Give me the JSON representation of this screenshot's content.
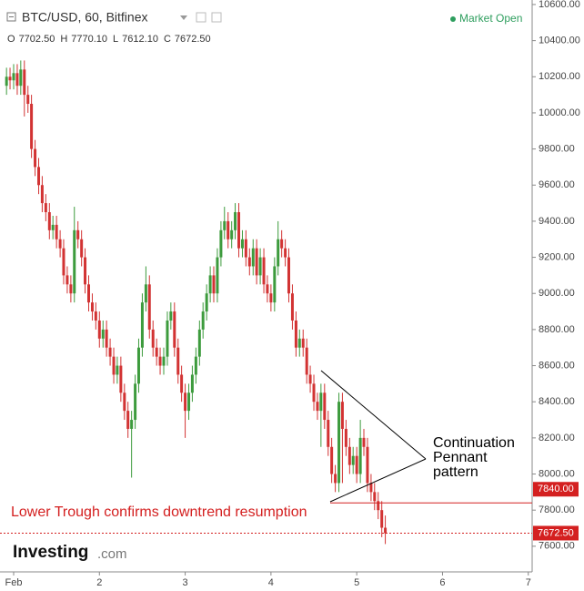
{
  "chart_data": {
    "type": "candlestick",
    "title": "BTC/USD, 60, Bitfinex",
    "status": "Market Open",
    "ohlc_legend": [
      {
        "label": "O",
        "text": "7702.50"
      },
      {
        "label": "H",
        "text": "7770.10"
      },
      {
        "label": "L",
        "text": "7612.10"
      },
      {
        "label": "C",
        "text": "7672.50"
      }
    ],
    "up_color": "#3d9b3d",
    "down_color": "#d23333",
    "x": [
      0.917,
      0.958,
      1.0,
      1.042,
      1.083,
      1.125,
      1.167,
      1.208,
      1.25,
      1.292,
      1.333,
      1.375,
      1.417,
      1.458,
      1.5,
      1.542,
      1.583,
      1.625,
      1.667,
      1.708,
      1.75,
      1.792,
      1.833,
      1.875,
      1.917,
      1.958,
      2.0,
      2.042,
      2.083,
      2.125,
      2.167,
      2.208,
      2.25,
      2.292,
      2.333,
      2.375,
      2.417,
      2.458,
      2.5,
      2.542,
      2.583,
      2.625,
      2.667,
      2.708,
      2.75,
      2.792,
      2.833,
      2.875,
      2.917,
      2.958,
      3.0,
      3.042,
      3.083,
      3.125,
      3.167,
      3.208,
      3.25,
      3.292,
      3.333,
      3.375,
      3.417,
      3.458,
      3.5,
      3.542,
      3.583,
      3.625,
      3.667,
      3.708,
      3.75,
      3.792,
      3.833,
      3.875,
      3.917,
      3.958,
      4.0,
      4.042,
      4.083,
      4.125,
      4.167,
      4.208,
      4.25,
      4.292,
      4.333,
      4.375,
      4.417,
      4.458,
      4.5,
      4.542,
      4.583,
      4.625,
      4.667,
      4.708,
      4.75,
      4.792,
      4.833,
      4.875,
      4.917,
      4.958,
      5.0,
      5.042,
      5.083,
      5.125,
      5.167,
      5.208,
      5.25,
      5.292,
      5.333
    ],
    "open": [
      10150,
      10200,
      10180,
      10220,
      10150,
      10240,
      10100,
      10050,
      9800,
      9700,
      9600,
      9500,
      9450,
      9350,
      9380,
      9300,
      9250,
      9100,
      9050,
      9000,
      9350,
      9300,
      9200,
      9050,
      8950,
      8900,
      8850,
      8750,
      8800,
      8700,
      8650,
      8550,
      8600,
      8450,
      8350,
      8250,
      8300,
      8500,
      8700,
      8950,
      9050,
      8800,
      8700,
      8650,
      8600,
      8650,
      8850,
      8900,
      8700,
      8550,
      8450,
      8350,
      8450,
      8550,
      8650,
      8800,
      8900,
      9000,
      9100,
      9000,
      9200,
      9350,
      9400,
      9300,
      9350,
      9450,
      9250,
      9300,
      9200,
      9150,
      9250,
      9100,
      9200,
      9050,
      9000,
      8950,
      9150,
      9300,
      9250,
      9200,
      9000,
      8850,
      8700,
      8750,
      8700,
      8550,
      8500,
      8400,
      8350,
      8450,
      8300,
      8150,
      8000,
      7950,
      8400,
      8250,
      8150,
      8050,
      8100,
      8000,
      8200,
      8150,
      7950,
      7900,
      7850,
      7800,
      7702.5
    ],
    "high": [
      10250,
      10250,
      10270,
      10270,
      10290,
      10290,
      10150,
      10100,
      9850,
      9750,
      9650,
      9550,
      9500,
      9430,
      9430,
      9350,
      9300,
      9150,
      9100,
      9480,
      9400,
      9350,
      9250,
      9100,
      9000,
      8950,
      8900,
      8850,
      8850,
      8750,
      8700,
      8650,
      8650,
      8500,
      8400,
      8350,
      8550,
      8750,
      9000,
      9150,
      9100,
      8850,
      8750,
      8700,
      8700,
      8900,
      8950,
      8950,
      8750,
      8600,
      8500,
      8500,
      8600,
      8700,
      8850,
      8950,
      9050,
      9150,
      9150,
      9250,
      9400,
      9480,
      9450,
      9400,
      9500,
      9500,
      9350,
      9350,
      9250,
      9300,
      9300,
      9250,
      9250,
      9100,
      9050,
      9200,
      9400,
      9350,
      9300,
      9250,
      9050,
      8900,
      8800,
      8800,
      8750,
      8600,
      8550,
      8450,
      8500,
      8500,
      8350,
      8200,
      8050,
      8450,
      8450,
      8300,
      8200,
      8150,
      8150,
      8300,
      8250,
      8200,
      8000,
      7950,
      7900,
      7850,
      7770.1
    ],
    "low": [
      10100,
      10130,
      10130,
      10100,
      10100,
      9980,
      10000,
      9750,
      9650,
      9550,
      9450,
      9400,
      9300,
      9300,
      9250,
      9200,
      9050,
      9000,
      8950,
      8950,
      9250,
      9150,
      9000,
      8900,
      8850,
      8800,
      8700,
      8700,
      8650,
      8600,
      8500,
      8500,
      8400,
      8300,
      8200,
      7980,
      8250,
      8450,
      8650,
      8900,
      8750,
      8650,
      8600,
      8550,
      8550,
      8600,
      8800,
      8650,
      8500,
      8400,
      8200,
      8300,
      8400,
      8500,
      8600,
      8750,
      8850,
      8950,
      8950,
      8950,
      9150,
      9300,
      9250,
      9250,
      9300,
      9200,
      9200,
      9150,
      9100,
      9100,
      9050,
      9050,
      9000,
      8950,
      8900,
      8900,
      9100,
      9200,
      9150,
      8950,
      8800,
      8650,
      8650,
      8650,
      8500,
      8450,
      8350,
      8300,
      8150,
      8250,
      8100,
      7950,
      7900,
      7900,
      7950,
      8100,
      8000,
      8000,
      7950,
      7950,
      8100,
      7900,
      7850,
      7800,
      7750,
      7650,
      7612.1
    ],
    "close": [
      10200,
      10180,
      10220,
      10150,
      10240,
      10100,
      10050,
      9800,
      9700,
      9600,
      9500,
      9450,
      9350,
      9380,
      9300,
      9250,
      9100,
      9050,
      9000,
      9350,
      9300,
      9200,
      9050,
      8950,
      8900,
      8850,
      8750,
      8800,
      8700,
      8650,
      8550,
      8600,
      8450,
      8350,
      8250,
      8300,
      8500,
      8700,
      8950,
      9050,
      8800,
      8700,
      8650,
      8600,
      8650,
      8850,
      8900,
      8700,
      8550,
      8450,
      8350,
      8450,
      8550,
      8650,
      8800,
      8900,
      9000,
      9100,
      9000,
      9200,
      9350,
      9400,
      9300,
      9350,
      9450,
      9250,
      9300,
      9200,
      9150,
      9250,
      9100,
      9200,
      9050,
      9000,
      8950,
      9150,
      9300,
      9250,
      9200,
      9000,
      8850,
      8700,
      8750,
      8700,
      8550,
      8500,
      8400,
      8350,
      8450,
      8300,
      8150,
      8000,
      7950,
      8400,
      8250,
      8150,
      8050,
      8100,
      8000,
      8200,
      8150,
      7950,
      7900,
      7850,
      7800,
      7702.5,
      7672.5
    ],
    "xlim": [
      0.841,
      7.045
    ],
    "xticks": [
      {
        "value": 1,
        "label": "Feb"
      },
      2,
      3,
      4,
      5,
      6,
      7
    ],
    "ylim": [
      7458,
      10625
    ],
    "yticks": [
      {
        "value": 7600,
        "label": "7600.00"
      },
      {
        "value": 7800,
        "label": "7800.00"
      },
      {
        "value": 8000,
        "label": "8000.00"
      },
      {
        "value": 8200,
        "label": "8200.00"
      },
      {
        "value": 8400,
        "label": "8400.00"
      },
      {
        "value": 8600,
        "label": "8600.00"
      },
      {
        "value": 8800,
        "label": "8800.00"
      },
      {
        "value": 9000,
        "label": "9000.00"
      },
      {
        "value": 9200,
        "label": "9200.00"
      },
      {
        "value": 9400,
        "label": "9400.00"
      },
      {
        "value": 9600,
        "label": "9600.00"
      },
      {
        "value": 9800,
        "label": "9800.00"
      },
      {
        "value": 10000,
        "label": "10000.00"
      },
      {
        "value": 10200,
        "label": "10200.00"
      },
      {
        "value": 10400,
        "label": "10400.00"
      },
      {
        "value": 10600,
        "label": "10600.00"
      }
    ],
    "grid": false,
    "annotations": {
      "trough_text": "Lower Trough confirms downtrend resumption",
      "pennant_text": [
        "Continuation",
        "Pennant",
        "pattern"
      ],
      "trough_level": {
        "value": 7840,
        "label": "7840.00"
      },
      "last_price": {
        "value": 7672.5,
        "label": "7672.50"
      }
    }
  },
  "logo": {
    "brand": "Investing",
    "suffix": ".com"
  }
}
